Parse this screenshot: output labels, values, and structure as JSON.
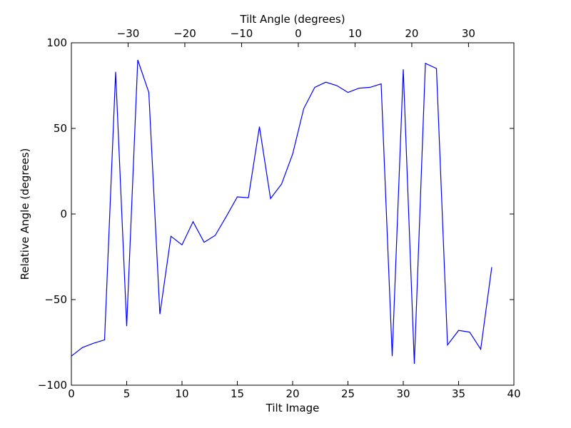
{
  "chart_data": {
    "type": "line",
    "title": "",
    "xlabel": "Tilt Image",
    "ylabel": "Relative Angle (degrees)",
    "top_xlabel": "Tilt Angle (degrees)",
    "xlim": [
      0,
      40
    ],
    "ylim": [
      -100,
      100
    ],
    "top_xlim": [
      -40,
      38
    ],
    "grid": false,
    "line_color": "#0000ff",
    "x_ticks": [
      0,
      5,
      10,
      15,
      20,
      25,
      30,
      35,
      40
    ],
    "x_tick_labels": [
      "0",
      "5",
      "10",
      "15",
      "20",
      "25",
      "30",
      "35",
      "40"
    ],
    "y_ticks": [
      -100,
      -50,
      0,
      50,
      100
    ],
    "y_tick_labels": [
      "−100",
      "−50",
      "0",
      "50",
      "100"
    ],
    "top_x_ticks": [
      -30,
      -20,
      -10,
      0,
      10,
      20,
      30
    ],
    "top_x_tick_labels": [
      "−30",
      "−20",
      "−10",
      "0",
      "10",
      "20",
      "30"
    ],
    "series": [
      {
        "x": [
          0,
          1,
          2,
          3,
          4,
          5,
          6,
          7,
          8,
          9,
          10,
          11,
          12,
          13,
          14,
          15,
          16,
          17,
          18,
          19,
          20,
          21,
          22,
          23,
          24,
          25,
          26,
          27,
          28,
          29,
          30,
          31,
          32,
          33,
          34,
          35,
          36,
          37,
          38
        ],
        "y": [
          -83,
          -78,
          -75.5,
          -73.5,
          83,
          -65.5,
          90,
          71,
          -58.5,
          -13,
          -18,
          -4.5,
          -16.5,
          -12.5,
          -1.5,
          10,
          9.5,
          51,
          9,
          17.5,
          35,
          61.5,
          74,
          77,
          75,
          71,
          73.5,
          74,
          76,
          -83,
          84.5,
          -87.5,
          88,
          85,
          -76.5,
          -68,
          -69,
          -79,
          -31
        ]
      }
    ]
  }
}
